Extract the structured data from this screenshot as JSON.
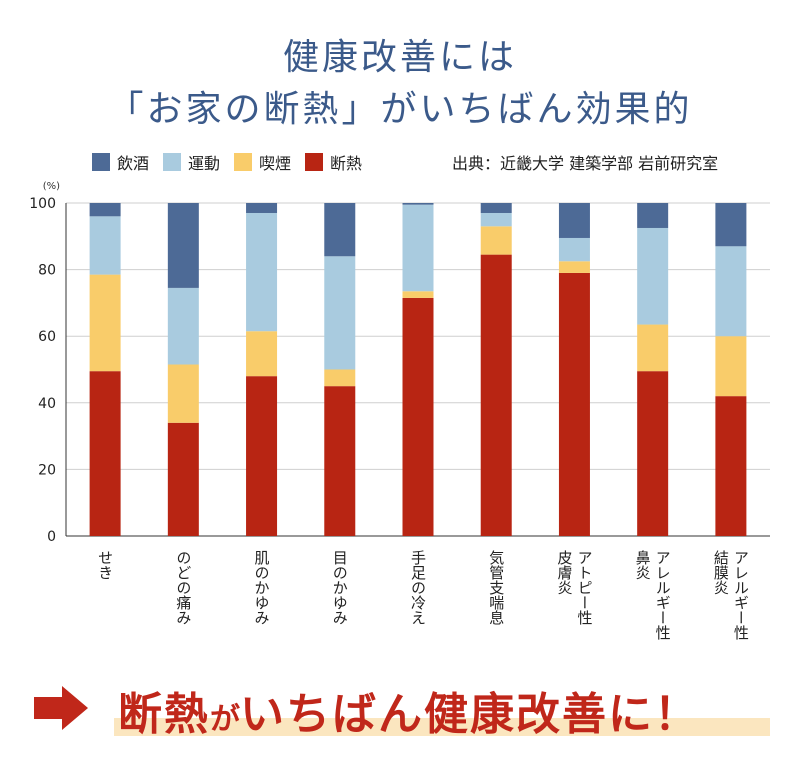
{
  "title_line1": "健康改善には",
  "title_line2": "「お家の断熱」がいちばん効果的",
  "legend": [
    {
      "label": "飲酒",
      "color": "#4d6a96"
    },
    {
      "label": "運動",
      "color": "#a9cbdf"
    },
    {
      "label": "喫煙",
      "color": "#f9cc6a"
    },
    {
      "label": "断熱",
      "color": "#b82513"
    }
  ],
  "source": "出典：近畿大学 建築学部 岩前研究室",
  "chart_data": {
    "type": "bar",
    "stacked": true,
    "unit": "(%)",
    "ylim": [
      0,
      100
    ],
    "yticks": [
      0,
      20,
      40,
      60,
      80,
      100
    ],
    "grid": true,
    "categories": [
      "せき",
      "のどの痛み",
      "肌のかゆみ",
      "目のかゆみ",
      "手足の冷え",
      "気管支喘息",
      "アトピー性皮膚炎",
      "アレルギー性鼻炎",
      "アレルギー性結膜炎"
    ],
    "category_lines": [
      [
        "せき"
      ],
      [
        "のどの痛み"
      ],
      [
        "肌のかゆみ"
      ],
      [
        "目のかゆみ"
      ],
      [
        "手足の冷え"
      ],
      [
        "気管支喘息"
      ],
      [
        "アトピー性",
        "皮膚炎"
      ],
      [
        "アレルギー性",
        "鼻炎"
      ],
      [
        "アレルギー性",
        "結膜炎"
      ]
    ],
    "series": [
      {
        "name": "断熱",
        "color": "#b82513",
        "values": [
          49.5,
          34,
          48,
          45,
          71.5,
          84.5,
          79,
          49.5,
          42
        ]
      },
      {
        "name": "喫煙",
        "color": "#f9cc6a",
        "values": [
          29,
          17.5,
          13.5,
          5,
          2,
          8.5,
          3.5,
          14,
          18
        ]
      },
      {
        "name": "運動",
        "color": "#a9cbdf",
        "values": [
          17.5,
          23,
          35.5,
          34,
          26,
          4,
          7,
          29,
          27
        ]
      },
      {
        "name": "飲酒",
        "color": "#4d6a96",
        "values": [
          4,
          25.5,
          3,
          16,
          0.5,
          3,
          10.5,
          7.5,
          13
        ]
      }
    ]
  },
  "slogan": {
    "part1": "断熱",
    "part2": "が",
    "part3": "いちばん健康改善に！"
  }
}
